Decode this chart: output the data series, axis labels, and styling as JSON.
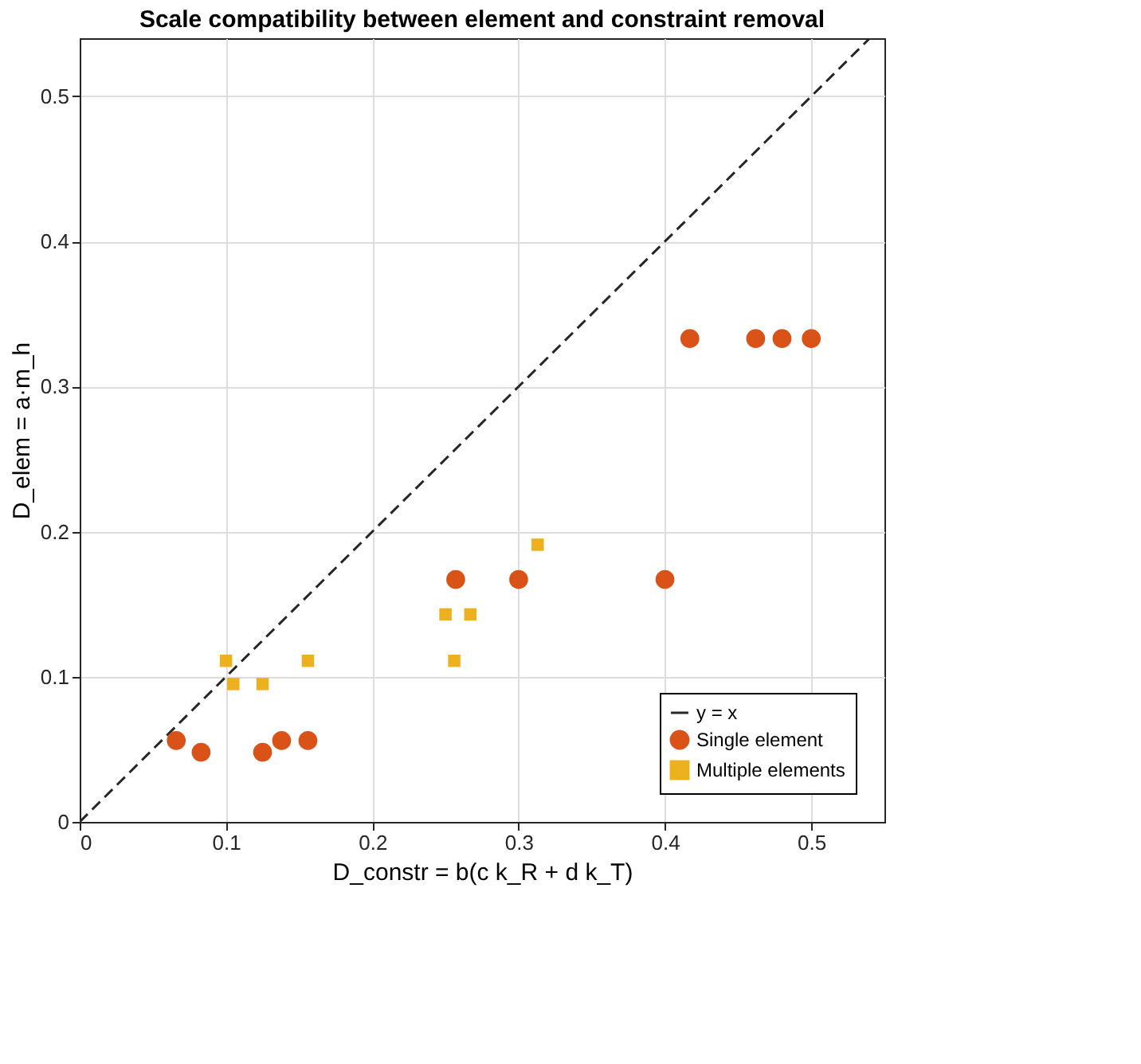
{
  "chart_data": {
    "type": "scatter",
    "title": "Scale compatibility between element and constraint removal",
    "xlabel": "D_constr = b(c k_R + d k_T)",
    "ylabel": "D_elem = a·m_h",
    "xlim": [
      0,
      0.55
    ],
    "ylim": [
      0,
      0.54
    ],
    "xticks": [
      0,
      0.1,
      0.2,
      0.3,
      0.4,
      0.5
    ],
    "yticks": [
      0,
      0.1,
      0.2,
      0.3,
      0.4,
      0.5
    ],
    "grid": true,
    "legend": "bottom right",
    "series": [
      {
        "name": "y = x",
        "type": "line",
        "line_style": "dashed",
        "marker": "none",
        "color": "#262626",
        "x": [
          0,
          0.54
        ],
        "values": [
          0,
          0.54
        ]
      },
      {
        "name": "Single element",
        "marker": "circle",
        "color": "#d95319",
        "x": [
          0.066,
          0.083,
          0.125,
          0.138,
          0.156,
          0.257,
          0.3,
          0.4,
          0.417,
          0.462,
          0.48,
          0.5
        ],
        "values": [
          0.056,
          0.048,
          0.048,
          0.056,
          0.056,
          0.167,
          0.167,
          0.167,
          0.333,
          0.333,
          0.333,
          0.333
        ]
      },
      {
        "name": "Multiple elements",
        "marker": "square",
        "color": "#edb120",
        "x": [
          0.1,
          0.105,
          0.125,
          0.156,
          0.25,
          0.267,
          0.256,
          0.313
        ],
        "values": [
          0.111,
          0.095,
          0.095,
          0.111,
          0.143,
          0.143,
          0.111,
          0.191
        ]
      }
    ]
  }
}
